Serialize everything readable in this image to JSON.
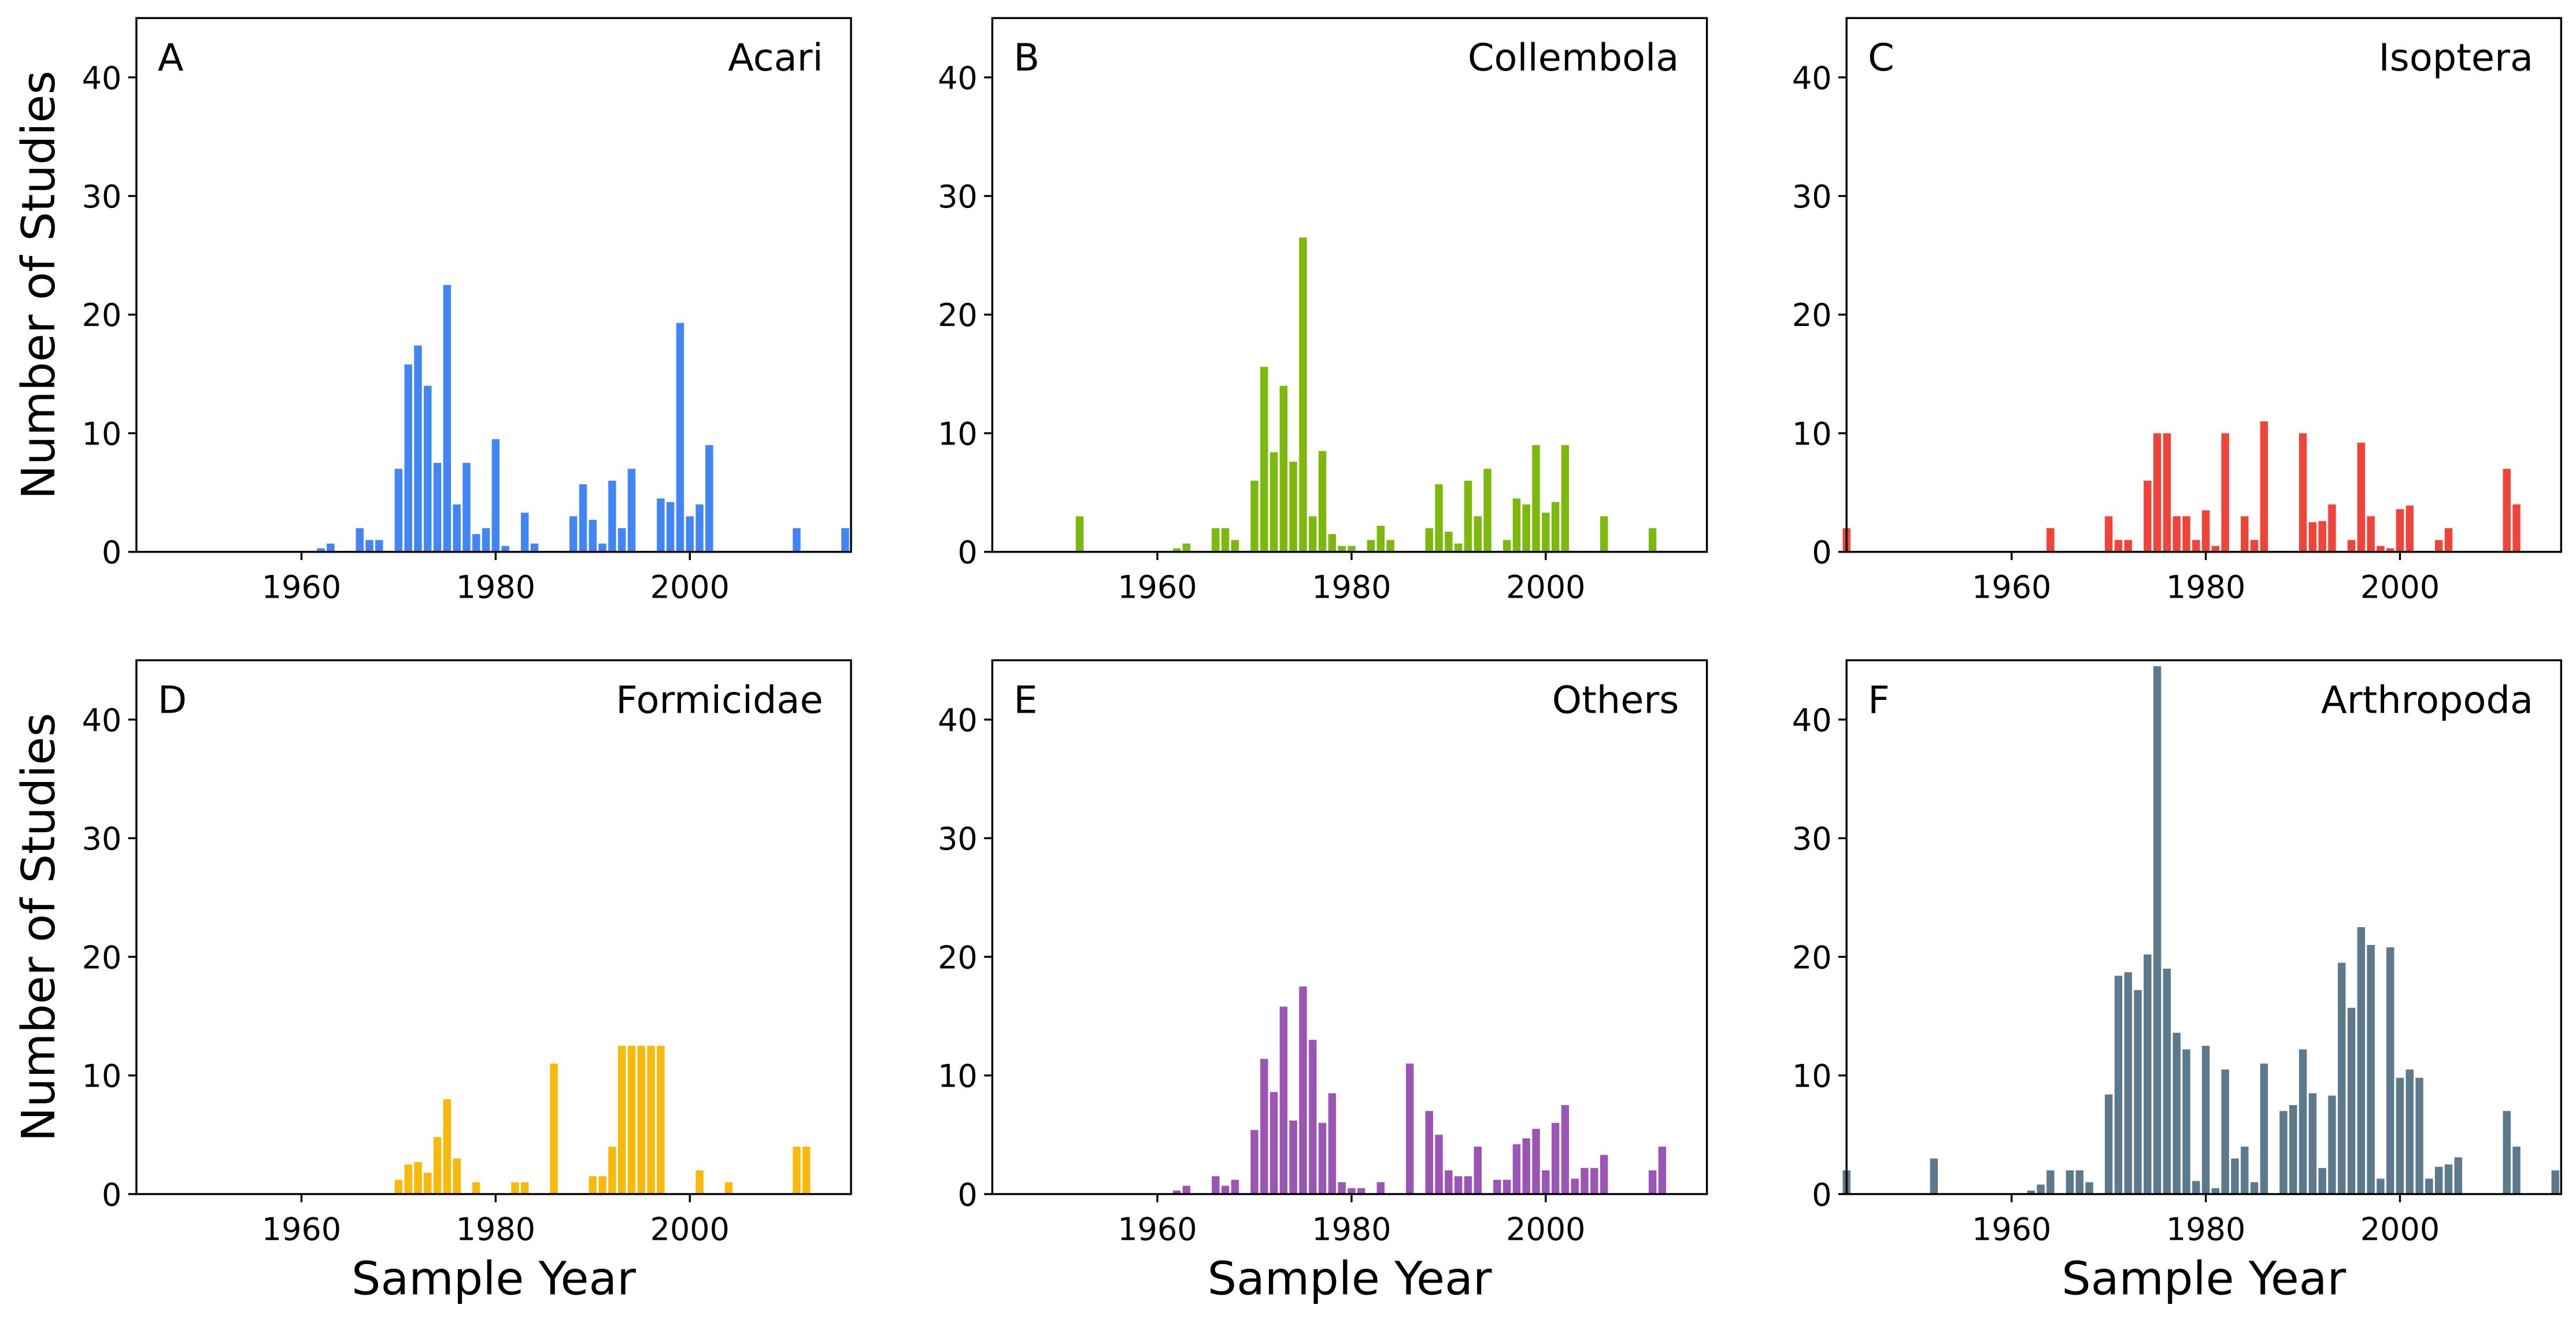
{
  "chart_data": [
    {
      "type": "bar",
      "panel_label": "A",
      "title": "Acari",
      "ylabel": "Number of Studies",
      "color": "#4285f4",
      "x": [
        1962,
        1963,
        1966,
        1967,
        1968,
        1970,
        1971,
        1972,
        1973,
        1974,
        1975,
        1976,
        1977,
        1978,
        1979,
        1980,
        1981,
        1983,
        1984,
        1988,
        1989,
        1990,
        1991,
        1992,
        1993,
        1994,
        1997,
        1998,
        1999,
        2000,
        2001,
        2002,
        2011,
        2016
      ],
      "values": [
        0.3,
        0.7,
        2,
        1,
        1,
        7,
        15.8,
        17.4,
        14,
        7.5,
        22.5,
        4,
        7.5,
        1.5,
        2,
        9.5,
        0.5,
        3.3,
        0.7,
        3,
        5.7,
        2.7,
        0.7,
        6,
        2,
        7,
        4.5,
        4.2,
        19.3,
        3,
        4,
        9,
        2,
        2
      ],
      "xlim": [
        1943,
        2016.6
      ],
      "ylim": [
        0,
        45
      ],
      "xticks": [
        1960,
        1980,
        2000
      ],
      "yticks": [
        0,
        10,
        20,
        30,
        40
      ]
    },
    {
      "type": "bar",
      "panel_label": "B",
      "title": "Collembola",
      "color": "#7cb90c",
      "x": [
        1952,
        1962,
        1963,
        1966,
        1967,
        1968,
        1970,
        1971,
        1972,
        1973,
        1974,
        1975,
        1976,
        1977,
        1978,
        1979,
        1980,
        1982,
        1983,
        1984,
        1988,
        1989,
        1990,
        1991,
        1992,
        1993,
        1994,
        1996,
        1997,
        1998,
        1999,
        2000,
        2001,
        2002,
        2006,
        2011
      ],
      "values": [
        3,
        0.3,
        0.7,
        2,
        2,
        1,
        6,
        15.6,
        8.4,
        14,
        7.6,
        26.5,
        3,
        8.5,
        1.5,
        0.5,
        0.5,
        1,
        2.2,
        1,
        2,
        5.7,
        1.7,
        0.7,
        6,
        3,
        7,
        1,
        4.5,
        4,
        9,
        3.3,
        4.2,
        9,
        3,
        2
      ],
      "xlim": [
        1943,
        2016.6
      ],
      "ylim": [
        0,
        45
      ],
      "xticks": [
        1960,
        1980,
        2000
      ],
      "yticks": [
        0,
        10,
        20,
        30,
        40
      ]
    },
    {
      "type": "bar",
      "panel_label": "C",
      "title": "Isoptera",
      "color": "#f0443a",
      "x": [
        1943,
        1964,
        1970,
        1971,
        1972,
        1974,
        1975,
        1976,
        1977,
        1978,
        1979,
        1980,
        1981,
        1982,
        1984,
        1985,
        1986,
        1990,
        1991,
        1992,
        1993,
        1995,
        1996,
        1997,
        1998,
        1999,
        2000,
        2001,
        2004,
        2005,
        2011,
        2012
      ],
      "values": [
        2,
        2,
        3,
        1,
        1,
        6,
        10,
        10,
        3,
        3,
        1,
        3.5,
        0.5,
        10,
        3,
        1,
        11,
        10,
        2.5,
        2.6,
        4,
        1,
        9.2,
        3,
        0.5,
        0.3,
        3.6,
        3.9,
        1,
        2,
        7,
        4
      ],
      "xlim": [
        1943,
        2016.6
      ],
      "ylim": [
        0,
        45
      ],
      "xticks": [
        1960,
        1980,
        2000
      ],
      "yticks": [
        0,
        10,
        20,
        30,
        40
      ]
    },
    {
      "type": "bar",
      "panel_label": "D",
      "title": "Formicidae",
      "ylabel": "Number of Studies",
      "xlabel": "Sample Year",
      "color": "#f9b90b",
      "x": [
        1970,
        1971,
        1972,
        1973,
        1974,
        1975,
        1976,
        1978,
        1982,
        1983,
        1986,
        1990,
        1991,
        1992,
        1993,
        1994,
        1995,
        1996,
        1997,
        2001,
        2004,
        2011,
        2012
      ],
      "values": [
        1.2,
        2.5,
        2.7,
        1.8,
        4.8,
        8,
        3,
        1,
        1,
        1,
        11,
        1.5,
        1.5,
        4,
        12.5,
        12.5,
        12.5,
        12.5,
        12.5,
        2,
        1,
        4,
        4
      ],
      "xlim": [
        1943,
        2016.6
      ],
      "ylim": [
        0,
        45
      ],
      "xticks": [
        1960,
        1980,
        2000
      ],
      "yticks": [
        0,
        10,
        20,
        30,
        40
      ]
    },
    {
      "type": "bar",
      "panel_label": "E",
      "title": "Others",
      "xlabel": "Sample Year",
      "color": "#9b55b5",
      "x": [
        1962,
        1963,
        1966,
        1967,
        1968,
        1970,
        1971,
        1972,
        1973,
        1974,
        1975,
        1976,
        1977,
        1978,
        1979,
        1980,
        1981,
        1983,
        1986,
        1988,
        1989,
        1990,
        1991,
        1992,
        1993,
        1995,
        1996,
        1997,
        1998,
        1999,
        2000,
        2001,
        2002,
        2003,
        2004,
        2005,
        2006,
        2011,
        2012
      ],
      "values": [
        0.3,
        0.7,
        1.5,
        0.7,
        1.2,
        5.4,
        11.4,
        8.6,
        15.8,
        6.2,
        17.5,
        13,
        6,
        8.5,
        1,
        0.5,
        0.5,
        1,
        11,
        7,
        5,
        2,
        1.5,
        1.5,
        4,
        1.2,
        1.2,
        4.2,
        4.7,
        5.5,
        2,
        6,
        7.5,
        1.3,
        2.2,
        2.2,
        3.3,
        2,
        4
      ],
      "xlim": [
        1943,
        2016.6
      ],
      "ylim": [
        0,
        45
      ],
      "xticks": [
        1960,
        1980,
        2000
      ],
      "yticks": [
        0,
        10,
        20,
        30,
        40
      ]
    },
    {
      "type": "bar",
      "panel_label": "F",
      "title": "Arthropoda",
      "xlabel": "Sample Year",
      "color": "#5d7a8d",
      "x": [
        1943,
        1952,
        1962,
        1963,
        1964,
        1966,
        1967,
        1968,
        1970,
        1971,
        1972,
        1973,
        1974,
        1975,
        1976,
        1977,
        1978,
        1979,
        1980,
        1981,
        1982,
        1983,
        1984,
        1985,
        1986,
        1988,
        1989,
        1990,
        1991,
        1992,
        1993,
        1994,
        1995,
        1996,
        1997,
        1998,
        1999,
        2000,
        2001,
        2002,
        2003,
        2004,
        2005,
        2006,
        2011,
        2012,
        2016
      ],
      "values": [
        2,
        3,
        0.3,
        0.8,
        2,
        2,
        2,
        1,
        8.4,
        18.4,
        18.7,
        17.2,
        20.2,
        44.5,
        19,
        13.6,
        12.2,
        1.1,
        12.5,
        0.5,
        10.5,
        3,
        4,
        1,
        11,
        7,
        7.5,
        12.2,
        8.5,
        2.2,
        8.3,
        19.5,
        15.7,
        22.5,
        21,
        1.3,
        20.8,
        9.8,
        10.5,
        9.8,
        1.3,
        2.3,
        2.5,
        3.1,
        7,
        4,
        2
      ],
      "xlim": [
        1943,
        2016.6
      ],
      "ylim": [
        0,
        45
      ],
      "xticks": [
        1960,
        1980,
        2000
      ],
      "yticks": [
        0,
        10,
        20,
        30,
        40
      ]
    }
  ]
}
